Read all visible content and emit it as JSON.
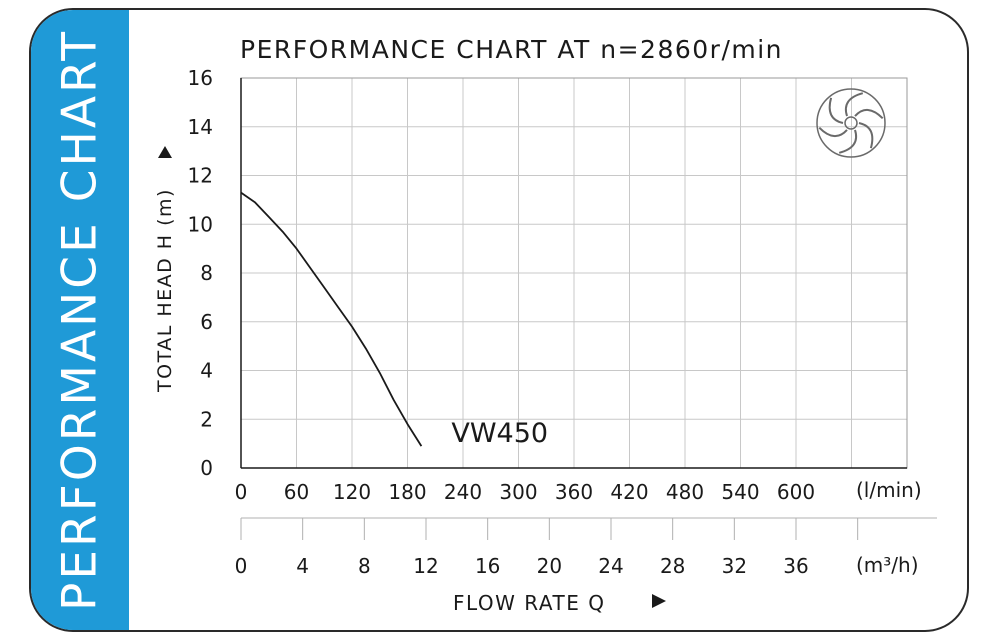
{
  "sidebar": {
    "label": "PERFORMANCE CHART"
  },
  "colors": {
    "sidebar": "#1f9ad7",
    "grid": "#c8c8c8",
    "curve": "#1a1a1a",
    "text": "#1a1a1a"
  },
  "icons": {
    "logo": "impeller-icon"
  },
  "chart_data": {
    "type": "line",
    "title": "PERFORMANCE CHART AT n=2860r/min",
    "ylabel": "TOTAL HEAD H (m)",
    "xlabel": "FLOW RATE Q",
    "x_unit": "(l/min)",
    "x2_unit": "(m³/h)",
    "ylim": [
      0,
      16
    ],
    "xlim": [
      0,
      720
    ],
    "x2lim": [
      0,
      43.2
    ],
    "grid": true,
    "yticks": [
      0,
      2,
      4,
      6,
      8,
      10,
      12,
      14,
      16
    ],
    "xticks": [
      0,
      60,
      120,
      180,
      240,
      300,
      360,
      420,
      480,
      540,
      600
    ],
    "x2ticks": [
      0,
      4,
      8,
      12,
      16,
      20,
      24,
      28,
      32,
      36
    ],
    "series": [
      {
        "name": "VW450",
        "x": [
          0,
          15,
          30,
          45,
          60,
          75,
          90,
          105,
          120,
          135,
          150,
          165,
          180,
          195
        ],
        "y": [
          11.3,
          10.9,
          10.3,
          9.7,
          9.0,
          8.2,
          7.4,
          6.6,
          5.8,
          4.9,
          3.9,
          2.8,
          1.8,
          0.9
        ]
      }
    ]
  }
}
